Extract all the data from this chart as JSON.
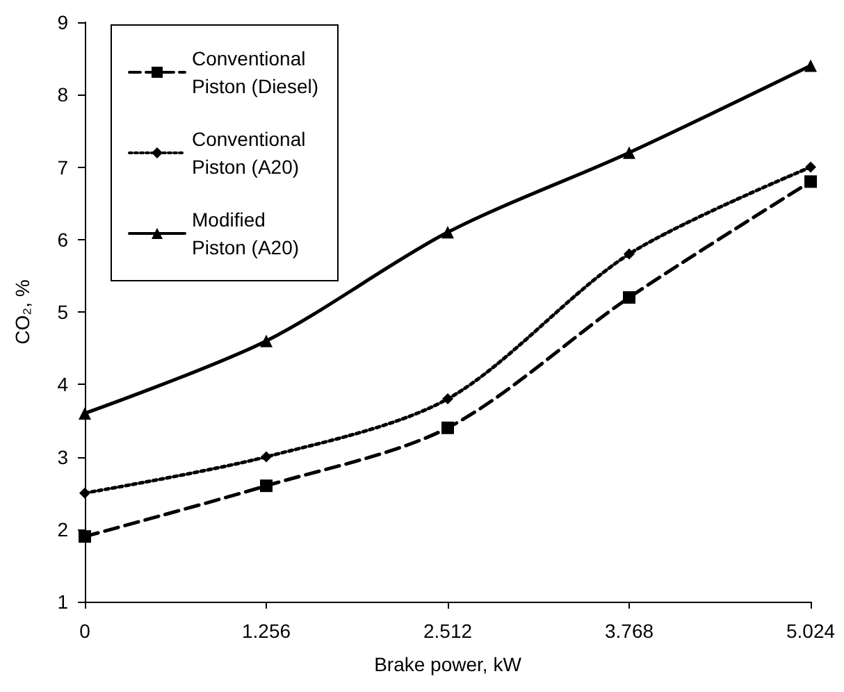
{
  "chart_data": {
    "type": "line",
    "xlabel": "Brake power, kW",
    "ylabel": "CO₂, %",
    "x": [
      0,
      1.256,
      2.512,
      3.768,
      5.024
    ],
    "xlim": [
      0,
      5.024
    ],
    "xticks": [
      0,
      1.256,
      2.512,
      3.768,
      5.024
    ],
    "ylim": [
      1,
      9
    ],
    "yticks": [
      1,
      2,
      3,
      4,
      5,
      6,
      7,
      8,
      9
    ],
    "grid": false,
    "legend": "top left",
    "series": [
      {
        "name": "Conventional Piston (Diesel)",
        "color": "#000000",
        "marker": "square",
        "line_style": "dashed",
        "values": [
          1.9,
          2.6,
          3.4,
          5.2,
          6.8
        ]
      },
      {
        "name": "Conventional Piston (A20)",
        "color": "#000000",
        "marker": "diamond",
        "line_style": "dotted",
        "values": [
          2.5,
          3.0,
          3.8,
          5.8,
          7.0
        ]
      },
      {
        "name": "Modified Piston (A20)",
        "color": "#000000",
        "marker": "triangle",
        "line_style": "solid",
        "values": [
          3.6,
          4.6,
          6.1,
          7.2,
          8.4
        ]
      }
    ]
  }
}
